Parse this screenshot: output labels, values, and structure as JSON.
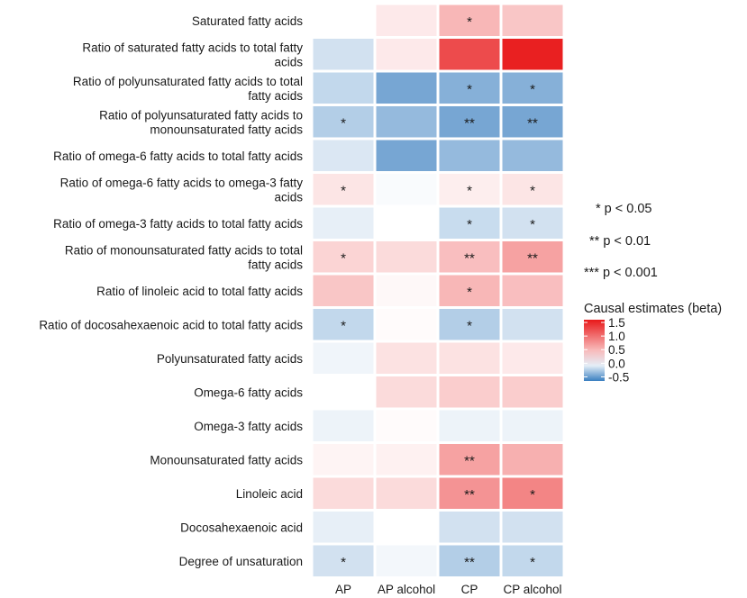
{
  "chart_data": {
    "type": "heatmap",
    "title": "",
    "xlabel": "",
    "ylabel": "",
    "columns": [
      "AP",
      "AP alcohol",
      "CP",
      "CP alcohol"
    ],
    "rows": [
      [
        "Saturated fatty acids"
      ],
      [
        "Ratio of saturated fatty acids to total fatty",
        "acids"
      ],
      [
        "Ratio of polyunsaturated fatty acids to total",
        "fatty acids"
      ],
      [
        "Ratio of polyunsaturated fatty acids to",
        "monounsaturated fatty acids"
      ],
      [
        "Ratio of omega-6 fatty acids to total fatty acids"
      ],
      [
        "Ratio of omega-6 fatty acids to omega-3 fatty",
        "acids"
      ],
      [
        "Ratio of omega-3 fatty acids to total fatty acids"
      ],
      [
        "Ratio of monounsaturated fatty acids to total",
        "fatty acids"
      ],
      [
        "Ratio of linoleic acid to total fatty acids"
      ],
      [
        "Ratio of docosahexaenoic acid to total fatty acids"
      ],
      [
        "Polyunsaturated fatty acids"
      ],
      [
        "Omega-6 fatty acids"
      ],
      [
        "Omega-3 fatty acids"
      ],
      [
        "Monounsaturated fatty acids"
      ],
      [
        "Linoleic acid"
      ],
      [
        "Docosahexaenoic acid"
      ],
      [
        "Degree of unsaturation"
      ]
    ],
    "values": [
      [
        0.0,
        0.15,
        0.5,
        0.4
      ],
      [
        -0.15,
        0.15,
        1.25,
        1.55
      ],
      [
        -0.2,
        -0.45,
        -0.4,
        -0.4
      ],
      [
        -0.25,
        -0.35,
        -0.45,
        -0.45
      ],
      [
        -0.12,
        -0.45,
        -0.35,
        -0.35
      ],
      [
        0.18,
        -0.02,
        0.12,
        0.18
      ],
      [
        -0.08,
        0.0,
        -0.18,
        -0.15
      ],
      [
        0.3,
        0.25,
        0.45,
        0.65
      ],
      [
        0.4,
        0.05,
        0.5,
        0.45
      ],
      [
        -0.2,
        0.03,
        -0.25,
        -0.15
      ],
      [
        -0.05,
        0.2,
        0.2,
        0.15
      ],
      [
        0.0,
        0.25,
        0.35,
        0.35
      ],
      [
        -0.06,
        0.03,
        -0.06,
        -0.06
      ],
      [
        0.08,
        0.1,
        0.65,
        0.55
      ],
      [
        0.25,
        0.25,
        0.75,
        0.85
      ],
      [
        -0.08,
        0.0,
        -0.15,
        -0.15
      ],
      [
        -0.15,
        -0.04,
        -0.25,
        -0.2
      ]
    ],
    "significance": [
      [
        "",
        "",
        "*",
        ""
      ],
      [
        "",
        "",
        "",
        ""
      ],
      [
        "",
        "",
        "*",
        "*"
      ],
      [
        "*",
        "",
        "**",
        "**"
      ],
      [
        "",
        "",
        "",
        ""
      ],
      [
        "*",
        "",
        "*",
        "*"
      ],
      [
        "",
        "",
        "*",
        "*"
      ],
      [
        "*",
        "",
        "**",
        "**"
      ],
      [
        "",
        "",
        "*",
        ""
      ],
      [
        "*",
        "",
        "*",
        ""
      ],
      [
        "",
        "",
        "",
        ""
      ],
      [
        "",
        "",
        "",
        ""
      ],
      [
        "",
        "",
        "",
        ""
      ],
      [
        "",
        "",
        "**",
        ""
      ],
      [
        "",
        "",
        "**",
        "*"
      ],
      [
        "",
        "",
        "",
        ""
      ],
      [
        "*",
        "",
        "**",
        "*"
      ]
    ],
    "significance_legend": [
      "* p < 0.05",
      "** p < 0.01",
      "*** p < 0.001"
    ],
    "legend": {
      "title": "Causal estimates (beta)",
      "ticks": [
        "1.5",
        "1.0",
        "0.5",
        "0.0",
        "-0.5"
      ],
      "tick_values": [
        1.5,
        1.0,
        0.5,
        0.0,
        -0.5
      ],
      "range": [
        -0.65,
        1.6
      ],
      "low_color": "#3a7fc0",
      "mid_color": "#ffffff",
      "high_color": "#e8191a",
      "position": "right"
    },
    "grid": false
  }
}
